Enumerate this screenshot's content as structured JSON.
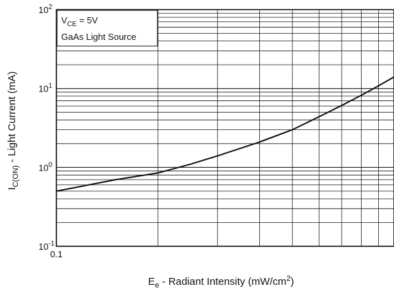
{
  "chart_data": {
    "type": "line",
    "x_scale": "log",
    "y_scale": "log",
    "xlim": [
      0.1,
      1
    ],
    "ylim": [
      0.1,
      100
    ],
    "grid": true,
    "x_tick_labels": [
      "0.1"
    ],
    "y_tick_labels": [
      {
        "base": "10",
        "exp": "-1"
      },
      {
        "base": "10",
        "exp": "0"
      },
      {
        "base": "10",
        "exp": "1"
      },
      {
        "base": "10",
        "exp": "2"
      }
    ],
    "xlabel": {
      "prefix": "E",
      "sub": "e",
      "mid": " - Radiant Intensity (mW/cm",
      "sup": "2",
      "suffix": ")"
    },
    "ylabel": {
      "prefix": "I",
      "sub": "C(ON)",
      "suffix": " - Light Current (mA)"
    },
    "annotation": {
      "line1": {
        "prefix": "V",
        "sub": "CE",
        "suffix": " = 5V"
      },
      "line2": "GaAs Light Source",
      "position": "top-left"
    },
    "series": [
      {
        "x": [
          0.1,
          0.15,
          0.2,
          0.25,
          0.3,
          0.4,
          0.5,
          0.6,
          0.7,
          0.8,
          0.9,
          1.0
        ],
        "y": [
          0.5,
          0.7,
          0.85,
          1.1,
          1.4,
          2.1,
          3.0,
          4.4,
          6.1,
          8.2,
          10.8,
          14.0
        ]
      }
    ]
  }
}
